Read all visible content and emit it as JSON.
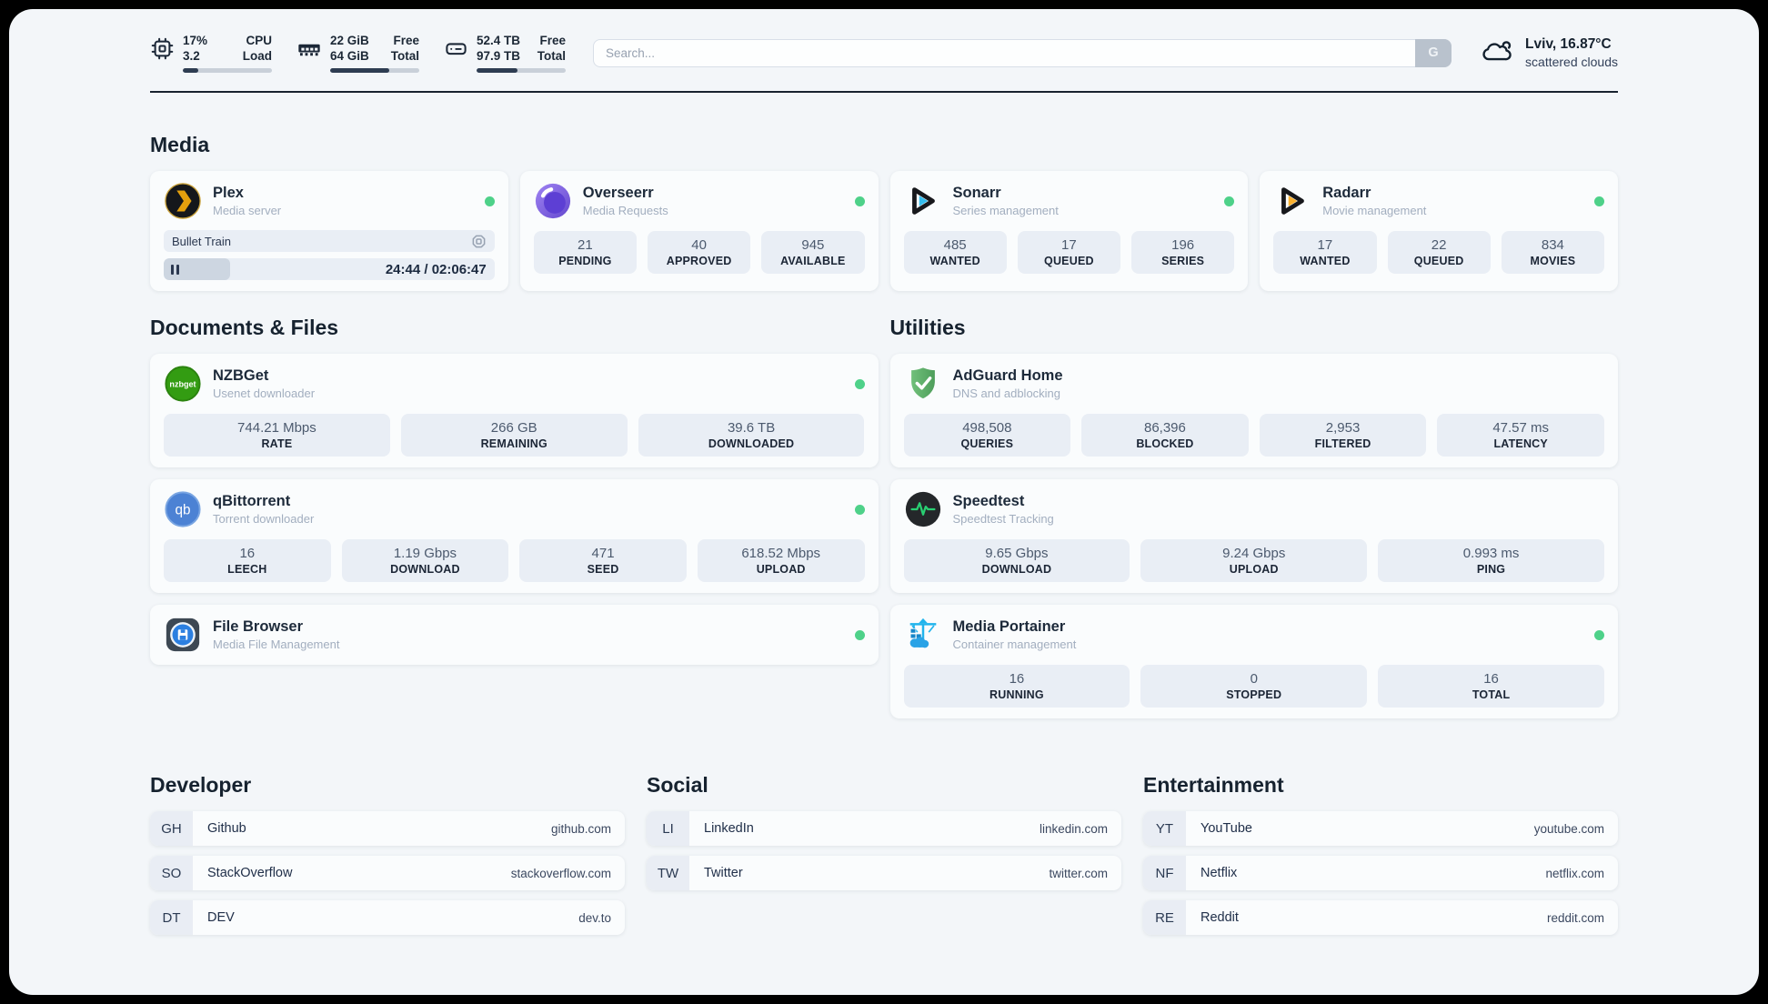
{
  "colors": {
    "online_green": "#4ed189",
    "plex_gold": "#e5a00d",
    "sonarr_blue": "#35bdee",
    "radarr_amber": "#fbb12f",
    "adguard_green": "#5fae68",
    "portainer_blue": "#21b4ec",
    "bar_fill_dark": "#2e3d52"
  },
  "topbar": {
    "cpu": {
      "value_top": "17%",
      "value_bottom": "3.2",
      "label_top": "CPU",
      "label_bottom": "Load",
      "bar_percent": 17
    },
    "memory": {
      "value_top": "22 GiB",
      "value_bottom": "64 GiB",
      "label_top": "Free",
      "label_bottom": "Total",
      "bar_percent": 66
    },
    "disk": {
      "value_top": "52.4 TB",
      "value_bottom": "97.9 TB",
      "label_top": "Free",
      "label_bottom": "Total",
      "bar_percent": 46
    },
    "search": {
      "placeholder": "Search...",
      "button_label": "G"
    },
    "weather": {
      "location": "Lviv, 16.87°C",
      "condition": "scattered clouds"
    }
  },
  "sections": {
    "media": {
      "title": "Media",
      "apps": [
        {
          "name": "Plex",
          "desc": "Media server",
          "online": true,
          "now_playing": {
            "title": "Bullet Train",
            "time": "24:44 / 02:06:47",
            "progress_percent": 20
          }
        },
        {
          "name": "Overseerr",
          "desc": "Media Requests",
          "online": true,
          "stats": [
            {
              "value": "21",
              "label": "PENDING"
            },
            {
              "value": "40",
              "label": "APPROVED"
            },
            {
              "value": "945",
              "label": "AVAILABLE"
            }
          ]
        },
        {
          "name": "Sonarr",
          "desc": "Series management",
          "online": true,
          "stats": [
            {
              "value": "485",
              "label": "WANTED"
            },
            {
              "value": "17",
              "label": "QUEUED"
            },
            {
              "value": "196",
              "label": "SERIES"
            }
          ]
        },
        {
          "name": "Radarr",
          "desc": "Movie management",
          "online": true,
          "stats": [
            {
              "value": "17",
              "label": "WANTED"
            },
            {
              "value": "22",
              "label": "QUEUED"
            },
            {
              "value": "834",
              "label": "MOVIES"
            }
          ]
        }
      ]
    },
    "documents": {
      "title": "Documents & Files",
      "apps": [
        {
          "name": "NZBGet",
          "desc": "Usenet downloader",
          "online": true,
          "stats": [
            {
              "value": "744.21 Mbps",
              "label": "RATE"
            },
            {
              "value": "266 GB",
              "label": "REMAINING"
            },
            {
              "value": "39.6 TB",
              "label": "DOWNLOADED"
            }
          ]
        },
        {
          "name": "qBittorrent",
          "desc": "Torrent downloader",
          "online": true,
          "stats": [
            {
              "value": "16",
              "label": "LEECH"
            },
            {
              "value": "1.19 Gbps",
              "label": "DOWNLOAD"
            },
            {
              "value": "471",
              "label": "SEED"
            },
            {
              "value": "618.52 Mbps",
              "label": "UPLOAD"
            }
          ]
        },
        {
          "name": "File Browser",
          "desc": "Media File Management",
          "online": true
        }
      ]
    },
    "utilities": {
      "title": "Utilities",
      "apps": [
        {
          "name": "AdGuard Home",
          "desc": "DNS and adblocking",
          "stats": [
            {
              "value": "498,508",
              "label": "QUERIES"
            },
            {
              "value": "86,396",
              "label": "BLOCKED"
            },
            {
              "value": "2,953",
              "label": "FILTERED"
            },
            {
              "value": "47.57 ms",
              "label": "LATENCY"
            }
          ]
        },
        {
          "name": "Speedtest",
          "desc": "Speedtest Tracking",
          "stats": [
            {
              "value": "9.65 Gbps",
              "label": "DOWNLOAD"
            },
            {
              "value": "9.24 Gbps",
              "label": "UPLOAD"
            },
            {
              "value": "0.993 ms",
              "label": "PING"
            }
          ]
        },
        {
          "name": "Media Portainer",
          "desc": "Container management",
          "online": true,
          "stats": [
            {
              "value": "16",
              "label": "RUNNING"
            },
            {
              "value": "0",
              "label": "STOPPED"
            },
            {
              "value": "16",
              "label": "TOTAL"
            }
          ]
        }
      ]
    },
    "bookmarks": [
      {
        "title": "Developer",
        "items": [
          {
            "abbr": "GH",
            "name": "Github",
            "url": "github.com"
          },
          {
            "abbr": "SO",
            "name": "StackOverflow",
            "url": "stackoverflow.com"
          },
          {
            "abbr": "DT",
            "name": "DEV",
            "url": "dev.to"
          }
        ]
      },
      {
        "title": "Social",
        "items": [
          {
            "abbr": "LI",
            "name": "LinkedIn",
            "url": "linkedin.com"
          },
          {
            "abbr": "TW",
            "name": "Twitter",
            "url": "twitter.com"
          }
        ]
      },
      {
        "title": "Entertainment",
        "items": [
          {
            "abbr": "YT",
            "name": "YouTube",
            "url": "youtube.com"
          },
          {
            "abbr": "NF",
            "name": "Netflix",
            "url": "netflix.com"
          },
          {
            "abbr": "RE",
            "name": "Reddit",
            "url": "reddit.com"
          }
        ]
      }
    ]
  }
}
